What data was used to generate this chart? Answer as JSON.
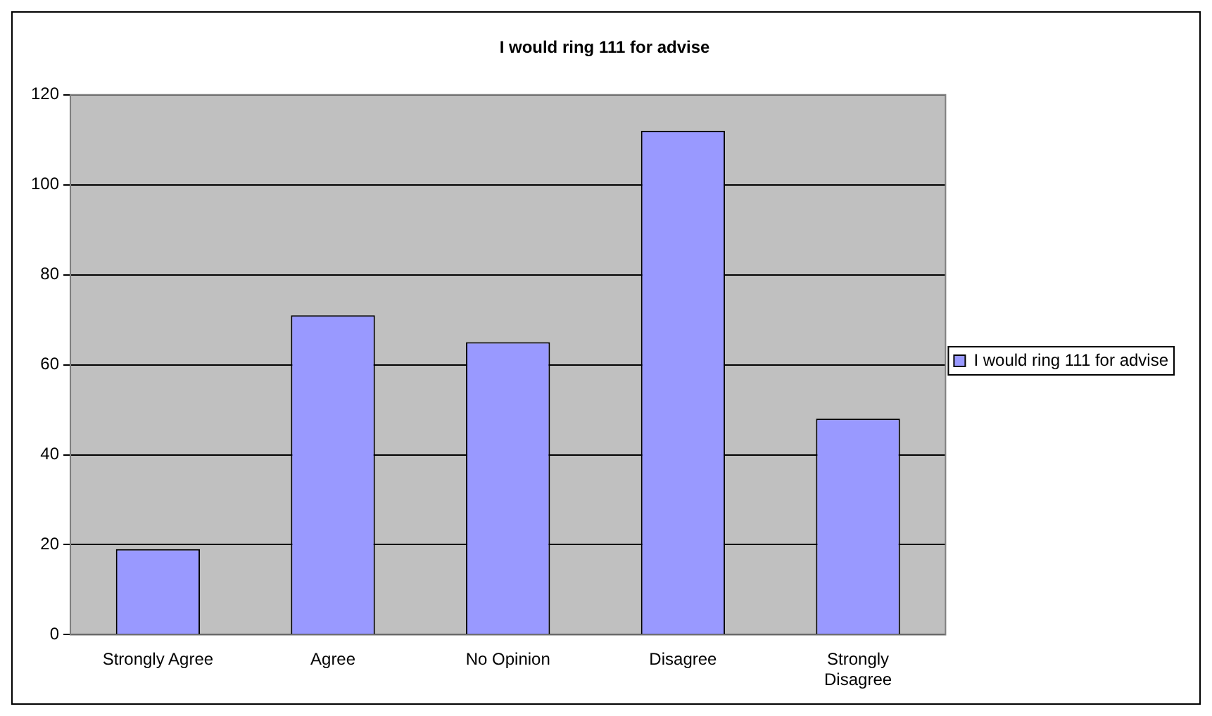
{
  "chart_data": {
    "type": "bar",
    "title": "I would ring 111 for advise",
    "categories": [
      "Strongly Agree",
      "Agree",
      "No Opinion",
      "Disagree",
      "Strongly Disagree"
    ],
    "series": [
      {
        "name": "I would ring 111 for advise",
        "color": "#9999ff",
        "values": [
          19,
          71,
          65,
          112,
          48
        ]
      }
    ],
    "ylim": [
      0,
      120
    ],
    "yticks": [
      0,
      20,
      40,
      60,
      80,
      100,
      120
    ],
    "grid": "y",
    "legend": "right"
  }
}
